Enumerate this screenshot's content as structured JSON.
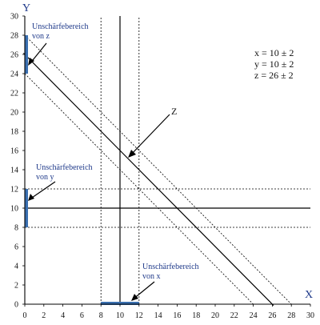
{
  "chart_data": {
    "type": "line",
    "xlabel": "X",
    "ylabel": "Y",
    "xlim": [
      0,
      30
    ],
    "ylim": [
      0,
      30
    ],
    "x_ticks": [
      0,
      2,
      4,
      6,
      8,
      10,
      12,
      14,
      16,
      18,
      20,
      22,
      24,
      26,
      28,
      30
    ],
    "y_ticks": [
      0,
      2,
      4,
      6,
      8,
      10,
      12,
      14,
      16,
      18,
      20,
      22,
      24,
      26,
      28,
      30
    ],
    "grid": false,
    "lines": [
      {
        "kind": "vertical",
        "x": 10,
        "style": "solid"
      },
      {
        "kind": "vertical",
        "x": 8,
        "style": "dotted"
      },
      {
        "kind": "vertical",
        "x": 12,
        "style": "dotted"
      },
      {
        "kind": "horizontal",
        "y": 10,
        "style": "solid"
      },
      {
        "kind": "horizontal",
        "y": 8,
        "style": "dotted"
      },
      {
        "kind": "horizontal",
        "y": 12,
        "style": "dotted"
      },
      {
        "kind": "diagonal",
        "x_plus_y": 26,
        "style": "solid-double"
      },
      {
        "kind": "diagonal",
        "x_plus_y": 24,
        "style": "dotted"
      },
      {
        "kind": "diagonal",
        "x_plus_y": 28,
        "style": "dotted"
      }
    ],
    "uncertainty_ranges": [
      {
        "axis": "x",
        "from": 8,
        "to": 12
      },
      {
        "axis": "y",
        "from": 8,
        "to": 12
      },
      {
        "axis": "y",
        "from": 24,
        "to": 28
      }
    ],
    "annotations": {
      "unc_z": [
        "Unschärfebereich",
        "von z"
      ],
      "unc_y": [
        "Unschärfebereich",
        "von y"
      ],
      "unc_x": [
        "Unschärfebereich",
        "von x"
      ],
      "z_label": "Z",
      "equations": [
        "x = 10 ± 2",
        "y = 10 ± 2",
        "z = 26 ± 2"
      ]
    },
    "colors": {
      "axis_label": "#1f3a8a",
      "annotation_text": "#1f3a8a",
      "range_bar": "#3a6fb0",
      "lines": "#000000"
    }
  }
}
